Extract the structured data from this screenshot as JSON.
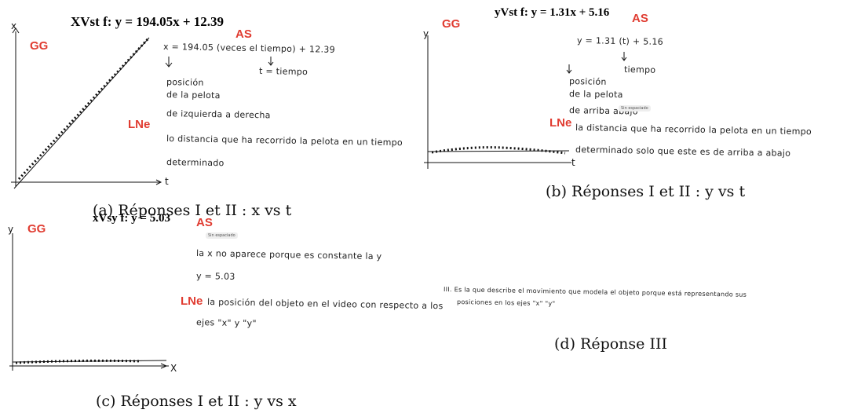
{
  "panels": [
    {
      "title": "XVst   f: y = 194.05x + 12.39",
      "tags": [
        "GG",
        "AS",
        "LNe"
      ],
      "axis_labels": [
        "x",
        "t"
      ],
      "notes": [
        "x = 194.05 (veces el tiempo) + 12.39",
        "t = tiempo",
        "posición",
        "de la pelota",
        "de izquierda a derecha",
        "lo distancia que ha recorrido la pelota en un tiempo",
        "determinado"
      ],
      "caption": "(a) Réponses I et II : x vs t"
    },
    {
      "title": "yVst   f: y = 1.31x + 5.16",
      "tags": [
        "GG",
        "AS",
        "LNe"
      ],
      "axis_labels": [
        "y",
        "t"
      ],
      "notes": [
        "y = 1.31 (t) + 5.16",
        "tiempo",
        "posición",
        "de la pelota",
        "de arriba abajo",
        "la distancia que ha recorrido la pelota en un tiempo",
        "determinado solo que este es de arriba a abajo"
      ],
      "tooltip": "Sin espaciado",
      "caption": "(b) Réponses I et II : y vs t"
    },
    {
      "title": "xVsy   f: y = 5.03",
      "tags": [
        "GG",
        "AS",
        "LNe"
      ],
      "axis_labels": [
        "y",
        "X"
      ],
      "notes": [
        "la x no aparece porque es constante la y",
        "y = 5.03",
        "la posición del objeto en el video con respecto a los",
        "ejes \"x\" y \"y\""
      ],
      "tooltip": "Sin espaciado",
      "caption": "(c) Réponses I et II : y vs x"
    },
    {
      "notes": [
        "III. Es la que describe el movimiento que modela el objeto porque está representando sus",
        "posiciones en los ejes \"x\" \"y\""
      ],
      "caption": "(d) Réponse III"
    }
  ]
}
